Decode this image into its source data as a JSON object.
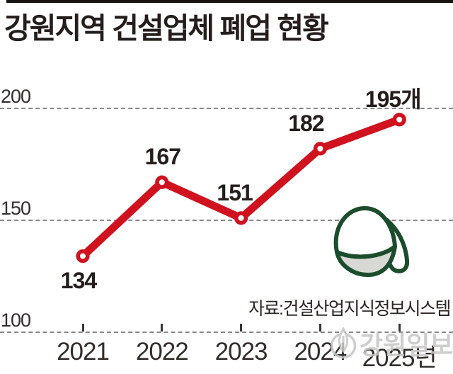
{
  "title": "강원지역 건설업체 폐업 현황",
  "source": {
    "text": "자료:건설산업지식정보시스템"
  },
  "watermark": {
    "text": "강원일보"
  },
  "colors": {
    "line_red": "#d0121f",
    "marker_center": "#ffffff",
    "grid_gray": "#8a8a8a",
    "text_dark": "#241d1b",
    "axis_text": "#332d2b",
    "helmet_green": "#1b4d2c",
    "helmet_brim_gray": "#d8d8d5",
    "watermark_gray": "#c6c6c6",
    "top_rule": "#17120f"
  },
  "chart_data": {
    "type": "line",
    "title": "강원지역 건설업체 폐업 현황",
    "categories": [
      "2021",
      "2022",
      "2023",
      "2024",
      "2025년"
    ],
    "values": [
      134,
      167,
      151,
      182,
      195
    ],
    "value_labels": [
      "134",
      "167",
      "151",
      "182",
      "195개"
    ],
    "label_position": [
      "below",
      "above",
      "above",
      "above",
      "above"
    ],
    "label_dx": [
      -6,
      1,
      -9,
      -20,
      -9
    ],
    "unit_suffix_on_last": "개",
    "yticks": [
      100,
      150,
      200
    ],
    "ylim": [
      100,
      200
    ],
    "xlabel": "",
    "ylabel": "",
    "grid": "dashed-horizontal",
    "legend": "none",
    "marker": "open-circle",
    "series_color": "#d0121f"
  }
}
